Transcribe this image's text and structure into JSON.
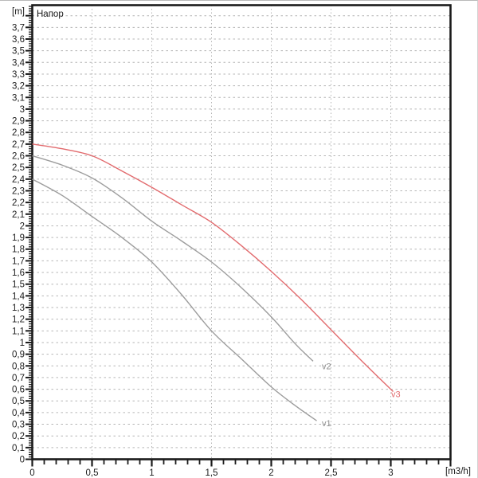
{
  "window": {
    "background": "#ffffff"
  },
  "chart_data": {
    "type": "line",
    "title": "Напор",
    "y_unit_label": "[m]",
    "x_unit_label": "[m3/h]",
    "xlabel": "[m3/h]",
    "ylabel": "Напор [m]",
    "xlim": [
      0,
      3.5
    ],
    "ylim": [
      0,
      3.89
    ],
    "grid": {
      "on": true,
      "h_step": 0.1,
      "h_max": 3.8,
      "v_step": 0.5,
      "v_max": 3.0,
      "color": "#b6b6b6"
    },
    "axis_color": "#1b1b1b",
    "y_major_tick_step": 0.1,
    "y_minor_tick_step": 0.02,
    "x_major_tick_step": 0.5,
    "x_minor_tick_step": 0.1,
    "y_ticks": [
      {
        "value": 0.0,
        "label": "0"
      },
      {
        "value": 0.1,
        "label": "0,1"
      },
      {
        "value": 0.2,
        "label": "0,2"
      },
      {
        "value": 0.3,
        "label": "0,3"
      },
      {
        "value": 0.4,
        "label": "0,4"
      },
      {
        "value": 0.5,
        "label": "0,5"
      },
      {
        "value": 0.6,
        "label": "0,6"
      },
      {
        "value": 0.7,
        "label": "0,7"
      },
      {
        "value": 0.8,
        "label": "0,8"
      },
      {
        "value": 0.9,
        "label": "0,9"
      },
      {
        "value": 1.0,
        "label": "1"
      },
      {
        "value": 1.1,
        "label": "1,1"
      },
      {
        "value": 1.2,
        "label": "1,2"
      },
      {
        "value": 1.3,
        "label": "1,3"
      },
      {
        "value": 1.4,
        "label": "1,4"
      },
      {
        "value": 1.5,
        "label": "1,5"
      },
      {
        "value": 1.6,
        "label": "1,6"
      },
      {
        "value": 1.7,
        "label": "1,7"
      },
      {
        "value": 1.8,
        "label": "1,8"
      },
      {
        "value": 1.9,
        "label": "1,9"
      },
      {
        "value": 2.0,
        "label": "2"
      },
      {
        "value": 2.1,
        "label": "2,1"
      },
      {
        "value": 2.2,
        "label": "2,2"
      },
      {
        "value": 2.3,
        "label": "2,3"
      },
      {
        "value": 2.4,
        "label": "2,4"
      },
      {
        "value": 2.5,
        "label": "2,5"
      },
      {
        "value": 2.6,
        "label": "2,6"
      },
      {
        "value": 2.7,
        "label": "2,7"
      },
      {
        "value": 2.8,
        "label": "2,8"
      },
      {
        "value": 2.9,
        "label": "2,9"
      },
      {
        "value": 3.0,
        "label": "3"
      },
      {
        "value": 3.1,
        "label": "3,1"
      },
      {
        "value": 3.2,
        "label": "3,2"
      },
      {
        "value": 3.3,
        "label": "3,3"
      },
      {
        "value": 3.4,
        "label": "3,4"
      },
      {
        "value": 3.5,
        "label": "3,5"
      },
      {
        "value": 3.6,
        "label": "3,6"
      },
      {
        "value": 3.7,
        "label": "3,7"
      }
    ],
    "x_ticks": [
      {
        "value": 0.0,
        "label": "0"
      },
      {
        "value": 0.5,
        "label": "0,5"
      },
      {
        "value": 1.0,
        "label": "1"
      },
      {
        "value": 1.5,
        "label": "1,5"
      },
      {
        "value": 2.0,
        "label": "2"
      },
      {
        "value": 2.5,
        "label": "2,5"
      },
      {
        "value": 3.0,
        "label": "3"
      }
    ],
    "series": [
      {
        "name": "v1",
        "color": "#9c9c9c",
        "label_color": "#8f8f8f",
        "label_at": [
          2.41,
          0.31
        ],
        "points": [
          [
            0,
            2.4
          ],
          [
            0.25,
            2.26
          ],
          [
            0.5,
            2.08
          ],
          [
            0.75,
            1.9
          ],
          [
            1.0,
            1.69
          ],
          [
            1.25,
            1.41
          ],
          [
            1.5,
            1.1
          ],
          [
            1.75,
            0.86
          ],
          [
            2.0,
            0.62
          ],
          [
            2.2,
            0.46
          ],
          [
            2.38,
            0.33
          ]
        ]
      },
      {
        "name": "v2",
        "color": "#9c9c9c",
        "label_color": "#8f8f8f",
        "label_at": [
          2.41,
          0.8
        ],
        "points": [
          [
            0,
            2.6
          ],
          [
            0.25,
            2.52
          ],
          [
            0.5,
            2.41
          ],
          [
            0.75,
            2.24
          ],
          [
            1.0,
            2.04
          ],
          [
            1.25,
            1.87
          ],
          [
            1.5,
            1.69
          ],
          [
            1.75,
            1.47
          ],
          [
            2.0,
            1.22
          ],
          [
            2.2,
            0.99
          ],
          [
            2.35,
            0.84
          ]
        ]
      },
      {
        "name": "v3",
        "color": "#e26b6e",
        "label_color": "#e26b6e",
        "label_at": [
          2.99,
          0.56
        ],
        "points": [
          [
            0,
            2.7
          ],
          [
            0.25,
            2.66
          ],
          [
            0.5,
            2.6
          ],
          [
            0.75,
            2.47
          ],
          [
            1.0,
            2.33
          ],
          [
            1.25,
            2.18
          ],
          [
            1.5,
            2.03
          ],
          [
            1.75,
            1.83
          ],
          [
            2.0,
            1.61
          ],
          [
            2.25,
            1.37
          ],
          [
            2.5,
            1.11
          ],
          [
            2.75,
            0.85
          ],
          [
            3.02,
            0.58
          ]
        ]
      }
    ]
  }
}
